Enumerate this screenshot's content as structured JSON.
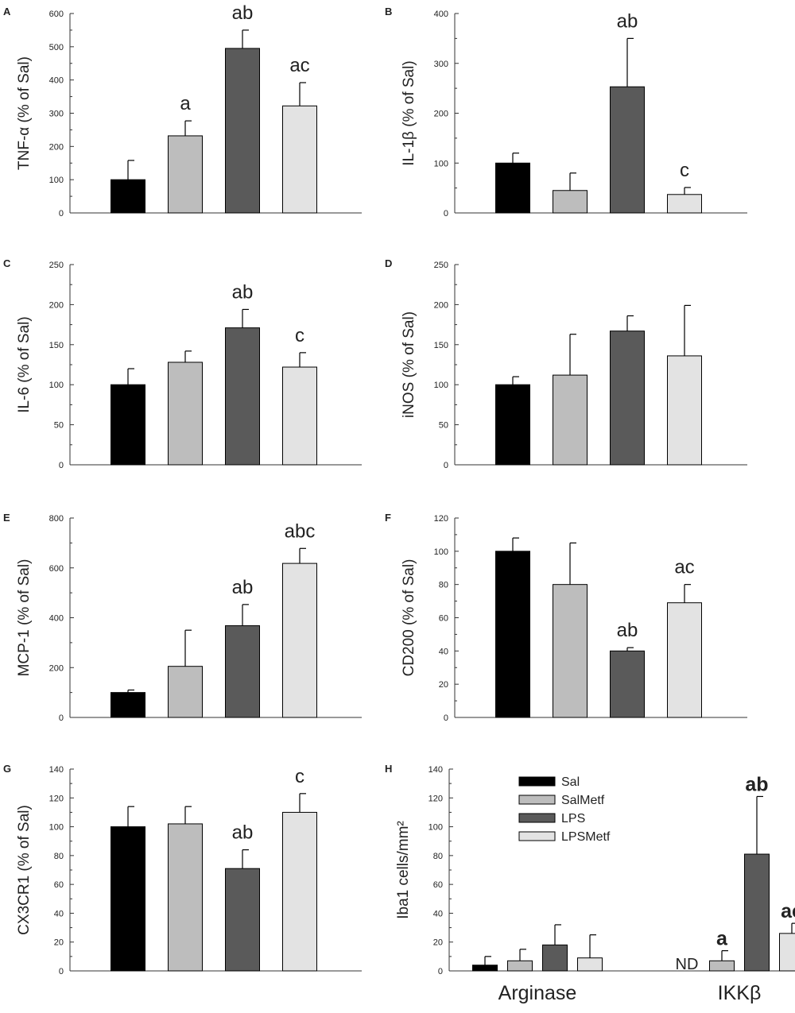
{
  "colors": {
    "Sal": "#000000",
    "SalMetf": "#bdbdbd",
    "LPS": "#5a5a5a",
    "LPSMetf": "#e3e3e3",
    "axis": "#333333"
  },
  "chart_data": [
    {
      "id": "A",
      "type": "bar",
      "panel_label": "A",
      "ylabel": "TNF-α (% of Sal)",
      "ylim": [
        0,
        600
      ],
      "yticks": [
        0,
        100,
        200,
        300,
        400,
        500,
        600
      ],
      "categories": [
        "Sal",
        "SalMetf",
        "LPS",
        "LPSMetf"
      ],
      "values": [
        100,
        232,
        495,
        322
      ],
      "errors": [
        58,
        45,
        55,
        70
      ],
      "annotations": [
        "",
        "a",
        "ab",
        "ac"
      ]
    },
    {
      "id": "B",
      "type": "bar",
      "panel_label": "B",
      "ylabel": "IL-1β (% of Sal)",
      "ylim": [
        0,
        400
      ],
      "yticks": [
        0,
        100,
        200,
        300,
        400
      ],
      "categories": [
        "Sal",
        "SalMetf",
        "LPS",
        "LPSMetf"
      ],
      "values": [
        100,
        45,
        253,
        37
      ],
      "errors": [
        20,
        35,
        97,
        14
      ],
      "annotations": [
        "",
        "",
        "ab",
        "c"
      ]
    },
    {
      "id": "C",
      "type": "bar",
      "panel_label": "C",
      "ylabel": "IL-6 (% of Sal)",
      "ylim": [
        0,
        250
      ],
      "yticks": [
        0,
        50,
        100,
        150,
        200,
        250
      ],
      "categories": [
        "Sal",
        "SalMetf",
        "LPS",
        "LPSMetf"
      ],
      "values": [
        100,
        128,
        171,
        122
      ],
      "errors": [
        20,
        14,
        23,
        18
      ],
      "annotations": [
        "",
        "",
        "ab",
        "c"
      ]
    },
    {
      "id": "D",
      "type": "bar",
      "panel_label": "D",
      "ylabel": "iNOS (% of Sal)",
      "ylim": [
        0,
        250
      ],
      "yticks": [
        0,
        50,
        100,
        150,
        200,
        250
      ],
      "categories": [
        "Sal",
        "SalMetf",
        "LPS",
        "LPSMetf"
      ],
      "values": [
        100,
        112,
        167,
        136
      ],
      "errors": [
        10,
        51,
        19,
        63
      ],
      "annotations": [
        "",
        "",
        "",
        ""
      ]
    },
    {
      "id": "E",
      "type": "bar",
      "panel_label": "E",
      "ylabel": "MCP-1 (% of Sal)",
      "ylim": [
        0,
        800
      ],
      "yticks": [
        0,
        200,
        400,
        600,
        800
      ],
      "categories": [
        "Sal",
        "SalMetf",
        "LPS",
        "LPSMetf"
      ],
      "values": [
        100,
        205,
        368,
        618
      ],
      "errors": [
        10,
        145,
        85,
        60
      ],
      "annotations": [
        "",
        "",
        "ab",
        "abc"
      ]
    },
    {
      "id": "F",
      "type": "bar",
      "panel_label": "F",
      "ylabel": "CD200 (% of Sal)",
      "ylim": [
        0,
        120
      ],
      "yticks": [
        0,
        20,
        40,
        60,
        80,
        100,
        120
      ],
      "categories": [
        "Sal",
        "SalMetf",
        "LPS",
        "LPSMetf"
      ],
      "values": [
        100,
        80,
        40,
        69
      ],
      "errors": [
        8,
        25,
        2,
        11
      ],
      "annotations": [
        "",
        "",
        "ab",
        "ac"
      ]
    },
    {
      "id": "G",
      "type": "bar",
      "panel_label": "G",
      "ylabel": "CX3CR1 (% of Sal)",
      "ylim": [
        0,
        140
      ],
      "yticks": [
        0,
        20,
        40,
        60,
        80,
        100,
        120,
        140
      ],
      "categories": [
        "Sal",
        "SalMetf",
        "LPS",
        "LPSMetf"
      ],
      "values": [
        100,
        102,
        71,
        110
      ],
      "errors": [
        14,
        12,
        13,
        13
      ],
      "annotations": [
        "",
        "",
        "ab",
        "c"
      ]
    },
    {
      "id": "H",
      "type": "bar",
      "panel_label": "H",
      "ylabel": "Iba1 cells/mm²",
      "ylim": [
        0,
        140
      ],
      "yticks": [
        0,
        20,
        40,
        60,
        80,
        100,
        120,
        140
      ],
      "groups": [
        "Arginase",
        "IKKβ"
      ],
      "legend": [
        "Sal",
        "SalMetf",
        "LPS",
        "LPSMetf"
      ],
      "series": [
        {
          "name": "Sal",
          "values": [
            4,
            null
          ],
          "errors": [
            6,
            null
          ],
          "annotations": [
            "",
            "ND"
          ]
        },
        {
          "name": "SalMetf",
          "values": [
            7,
            7
          ],
          "errors": [
            8,
            7
          ],
          "annotations": [
            "",
            "a"
          ]
        },
        {
          "name": "LPS",
          "values": [
            18,
            81
          ],
          "errors": [
            14,
            40
          ],
          "annotations": [
            "",
            "ab"
          ]
        },
        {
          "name": "LPSMetf",
          "values": [
            9,
            26
          ],
          "errors": [
            16,
            7
          ],
          "annotations": [
            "",
            "ac"
          ]
        }
      ]
    }
  ]
}
